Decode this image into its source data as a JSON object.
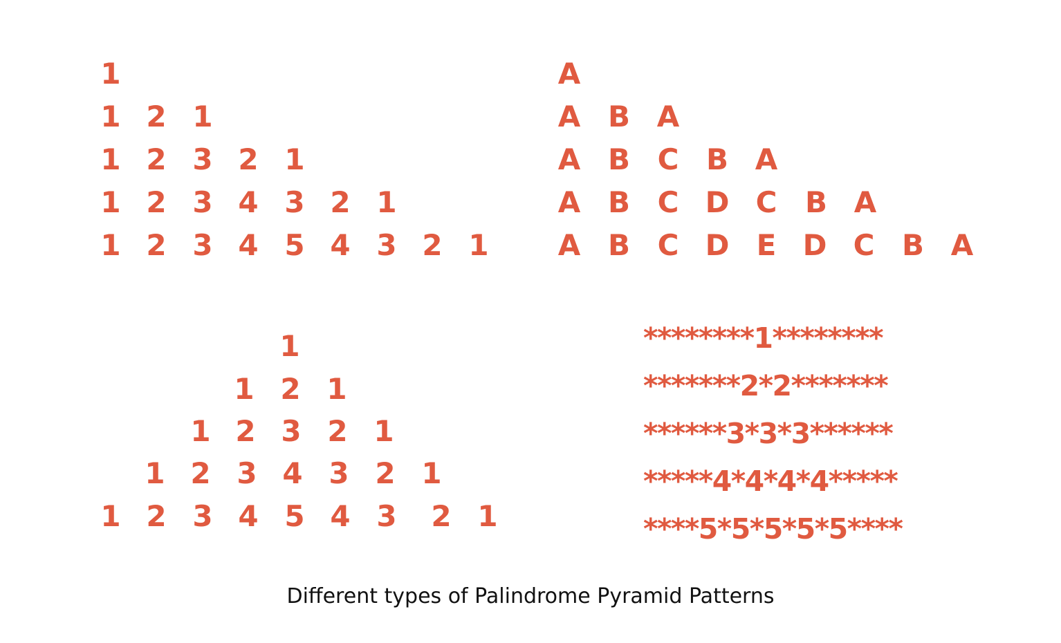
{
  "accent_color": "#e05a40",
  "patterns": {
    "number_half": {
      "rows": [
        [
          "1"
        ],
        [
          "1",
          "2",
          "1"
        ],
        [
          "1",
          "2",
          "3",
          "2",
          "1"
        ],
        [
          "1",
          "2",
          "3",
          "4",
          "3",
          "2",
          "1"
        ],
        [
          "1",
          "2",
          "3",
          "4",
          "5",
          "4",
          "3",
          "2",
          "1"
        ]
      ]
    },
    "letter_half": {
      "rows": [
        [
          "A"
        ],
        [
          "A",
          "B",
          "A"
        ],
        [
          "A",
          "B",
          "C",
          "B",
          "A"
        ],
        [
          "A",
          "B",
          "C",
          "D",
          "C",
          "B",
          "A"
        ],
        [
          "A",
          "B",
          "C",
          "D",
          "E",
          "D",
          "C",
          "B",
          "A"
        ]
      ]
    },
    "number_full": {
      "rows": [
        [
          "1"
        ],
        [
          "1",
          "2",
          "1"
        ],
        [
          "1",
          "2",
          "3",
          "2",
          "1"
        ],
        [
          "1",
          "2",
          "3",
          "4",
          "3",
          "2",
          "1"
        ],
        [
          "1",
          "2",
          "3",
          "4",
          "5",
          "4",
          "3",
          "2",
          "1"
        ]
      ]
    },
    "star_number": {
      "rows": [
        "********1********",
        "*******2*2*******",
        "******3*3*3******",
        "*****4*4*4*4*****",
        "****5*5*5*5*5****"
      ]
    }
  },
  "caption": "Different types of Palindrome Pyramid Patterns"
}
